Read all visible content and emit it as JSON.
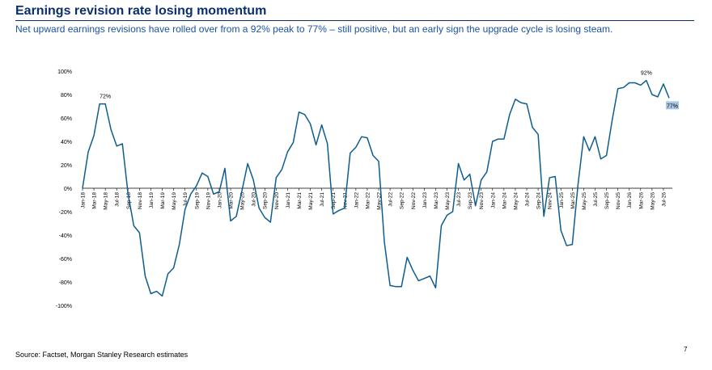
{
  "header": {
    "title": "Earnings revision rate losing momentum",
    "subtitle": "Net upward earnings revisions have rolled over from a 92% peak to 77% – still positive, but an early sign the upgrade cycle is losing steam."
  },
  "footer": {
    "source": "Source: Factset, Morgan Stanley Research estimates",
    "page": "7"
  },
  "colors": {
    "line": "#0f5d8f",
    "title": "#0b2f6b",
    "subtitle": "#1d52a3",
    "label_box": "#a9c8e4"
  },
  "chart_data": {
    "type": "line",
    "title": "",
    "xlabel": "",
    "ylabel": "",
    "ylim": [
      -100,
      100
    ],
    "y_ticks": [
      100,
      80,
      60,
      40,
      20,
      0,
      -20,
      -40,
      -60,
      -80,
      -100
    ],
    "y_tick_labels": [
      "100%",
      "80%",
      "60%",
      "40%",
      "20%",
      "0%",
      "-20%",
      "-40%",
      "-60%",
      "-80%",
      "-100%"
    ],
    "x_tick_labels": [
      "Jan-18",
      "Mar-18",
      "May-18",
      "Jul-18",
      "Sep-18",
      "Nov-18",
      "Jan-19",
      "Mar-19",
      "May-19",
      "Jul-19",
      "Sep-19",
      "Nov-19",
      "Jan-20",
      "Mar-20",
      "May-20",
      "Jul-20",
      "Sep-20",
      "Nov-20",
      "Jan-21",
      "Mar-21",
      "May-21",
      "Jul-21",
      "Sep-21",
      "Nov-21",
      "Jan-22",
      "Mar-22",
      "May-22",
      "Jul-22",
      "Sep-22",
      "Nov-22",
      "Jan-23",
      "Mar-23",
      "May-23",
      "Jul-23",
      "Sep-23",
      "Nov-23",
      "Jan-24",
      "Mar-24",
      "May-24",
      "Jul-24",
      "Sep-24",
      "Nov-24",
      "Jan-25",
      "Mar-25",
      "May-25",
      "Jul-25",
      "Sep-25",
      "Nov-25",
      "Jan-26",
      "Mar-26",
      "May-26",
      "Jul-26"
    ],
    "grid": false,
    "legend": "none",
    "series": [
      {
        "values": [
          0,
          31,
          45,
          72,
          72,
          50,
          36,
          38,
          -5,
          -32,
          -38,
          -75,
          -90,
          -88,
          -92,
          -73,
          -68,
          -48,
          -18,
          -5,
          2,
          13,
          10,
          -5,
          -3,
          17,
          -28,
          -24,
          -2,
          21,
          7,
          -17,
          -25,
          -29,
          9,
          16,
          31,
          39,
          65,
          63,
          55,
          37,
          54,
          38,
          -22,
          -19,
          -17,
          30,
          35,
          44,
          43,
          28,
          23,
          -46,
          -83,
          -84,
          -84,
          -59,
          -70,
          -79,
          -77,
          -75,
          -85,
          -32,
          -23,
          -20,
          21,
          7,
          12,
          -15,
          7,
          14,
          40,
          42,
          42,
          63,
          76,
          73,
          72,
          52,
          46,
          -24,
          9,
          10,
          -36,
          -49,
          -48,
          3,
          44,
          32,
          44,
          25,
          28,
          58,
          85,
          86,
          90,
          90,
          88,
          92,
          80,
          78,
          89,
          77
        ]
      }
    ],
    "annotations": [
      {
        "text": "72%",
        "x_index": 4,
        "y": 72
      },
      {
        "text": "92%",
        "x_index": 99,
        "y": 92
      },
      {
        "text": "77%",
        "x_index": 103,
        "y": 77
      }
    ]
  }
}
